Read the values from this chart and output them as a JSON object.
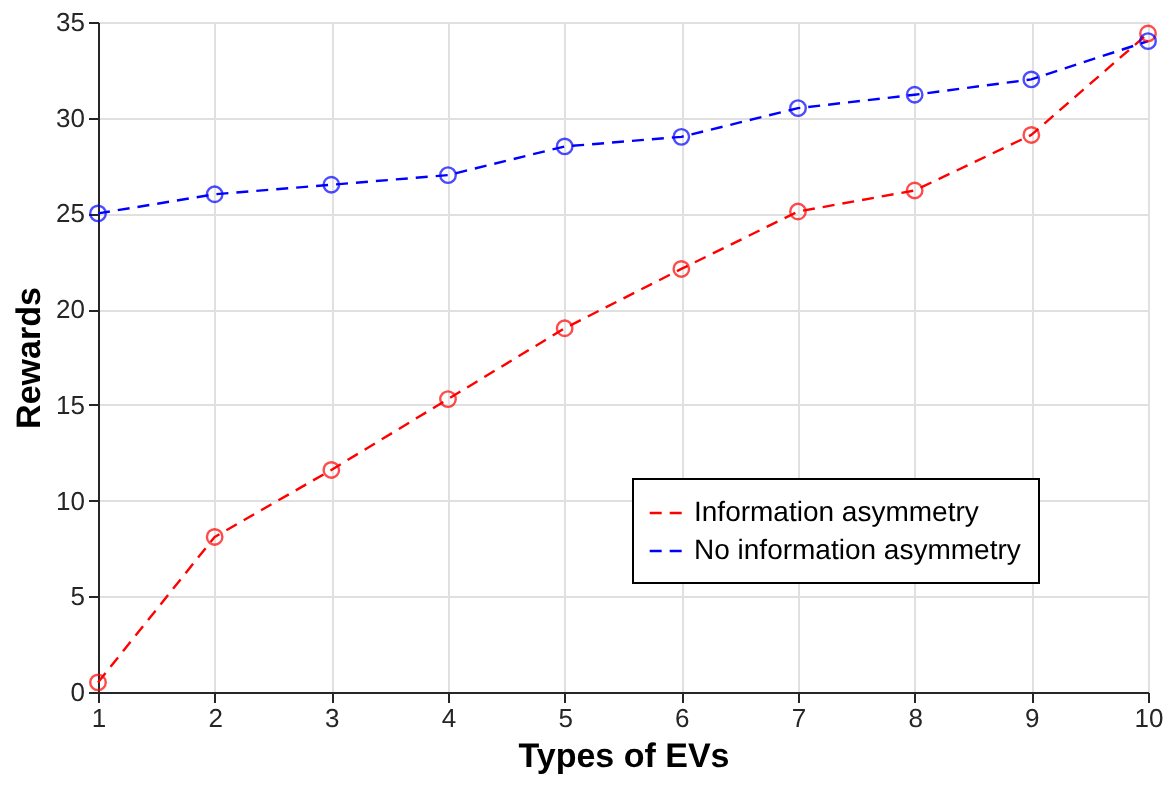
{
  "chart_data": {
    "type": "line",
    "xlabel": "Types of EVs",
    "ylabel": "Rewards",
    "x": [
      1,
      2,
      3,
      4,
      5,
      6,
      7,
      8,
      9,
      10
    ],
    "series": [
      {
        "name": "Information asymmetry",
        "color": "#ff0000",
        "values": [
          0.5,
          8.1,
          11.6,
          15.3,
          19.0,
          22.1,
          25.1,
          26.2,
          29.1,
          34.4
        ]
      },
      {
        "name": "No information asymmetry",
        "color": "#0000ff",
        "values": [
          25.0,
          26.0,
          26.5,
          27.0,
          28.5,
          29.0,
          30.5,
          31.2,
          32.0,
          34.0
        ]
      }
    ],
    "xlim": [
      1,
      10
    ],
    "xticks": [
      1,
      2,
      3,
      4,
      5,
      6,
      7,
      8,
      9,
      10
    ],
    "ylim": [
      0,
      35
    ],
    "yticks": [
      0,
      5,
      10,
      15,
      20,
      25,
      30,
      35
    ],
    "grid": true,
    "legend": "bottom right",
    "marker": "circle",
    "line_style": "dashed"
  }
}
